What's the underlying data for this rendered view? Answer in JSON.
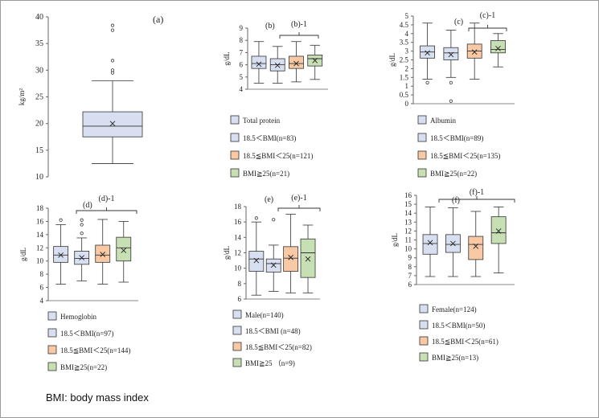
{
  "footnote": "BMI: body mass index",
  "colors": {
    "blue": "#d7dff0",
    "orange": "#f8c9a4",
    "green": "#c6e0b4",
    "edge": "#3a3a3a"
  },
  "chart_data": [
    {
      "type": "box",
      "panel_label": "(a)",
      "ylabel": "kg/m²",
      "ylim": [
        10,
        40
      ],
      "ticks": [
        10,
        15,
        20,
        25,
        30,
        35,
        40
      ],
      "bracket": null,
      "series": [
        {
          "whislo": 12.5,
          "q1": 17.5,
          "median": 19.5,
          "q3": 22.2,
          "whishi": 28.0,
          "mean": 20.0,
          "fliers": [
            29.5,
            30.0,
            31.8,
            37.5,
            38.4
          ],
          "color": "blue"
        }
      ],
      "legend": []
    },
    {
      "type": "box",
      "panel_label": "(b)",
      "bracket_label": "(b)-1",
      "ylabel": "g/dL",
      "ylim": [
        4,
        9
      ],
      "ticks": [
        4,
        5,
        6,
        7,
        8,
        9
      ],
      "bracket": [
        1,
        3
      ],
      "series": [
        {
          "whislo": 4.5,
          "q1": 5.7,
          "median": 6.1,
          "q3": 6.7,
          "whishi": 7.9,
          "mean": 6.05,
          "fliers": [],
          "color": "blue"
        },
        {
          "whislo": 4.5,
          "q1": 5.5,
          "median": 6.0,
          "q3": 6.5,
          "whishi": 7.5,
          "mean": 5.95,
          "fliers": [],
          "color": "blue"
        },
        {
          "whislo": 4.6,
          "q1": 5.7,
          "median": 6.1,
          "q3": 6.7,
          "whishi": 7.9,
          "mean": 6.1,
          "fliers": [],
          "color": "orange"
        },
        {
          "whislo": 4.8,
          "q1": 5.9,
          "median": 6.5,
          "q3": 6.8,
          "whishi": 7.6,
          "mean": 6.35,
          "fliers": [],
          "color": "green"
        }
      ],
      "legend": [
        {
          "label": "Total protein",
          "color": "blue"
        },
        {
          "label": "18.5＜BMI(n=83)",
          "color": "blue"
        },
        {
          "label": "18.5≦BMI＜25(n=121)",
          "color": "orange"
        },
        {
          "label": "BMI≧25(n=21)",
          "color": "green"
        }
      ]
    },
    {
      "type": "box",
      "panel_label": "(c)",
      "bracket_label": "(c)-1",
      "ylabel": "g/dL",
      "ylim": [
        0,
        5
      ],
      "ticks": [
        0,
        0.5,
        1,
        1.5,
        2,
        2.5,
        3,
        3.5,
        4,
        4.5,
        5
      ],
      "tick_labels": [
        "0",
        "0.5",
        "1",
        "1.5",
        "2",
        "2.5",
        "3",
        "3.5",
        "4",
        "4.5",
        "5"
      ],
      "bracket": [
        1,
        3
      ],
      "series": [
        {
          "whislo": 1.4,
          "q1": 2.6,
          "median": 2.95,
          "q3": 3.3,
          "whishi": 4.6,
          "mean": 2.9,
          "fliers": [
            1.2
          ],
          "color": "blue"
        },
        {
          "whislo": 1.5,
          "q1": 2.5,
          "median": 2.9,
          "q3": 3.2,
          "whishi": 4.2,
          "mean": 2.8,
          "fliers": [
            1.2,
            0.15
          ],
          "color": "blue"
        },
        {
          "whislo": 1.4,
          "q1": 2.6,
          "median": 3.0,
          "q3": 3.4,
          "whishi": 4.6,
          "mean": 2.95,
          "fliers": [],
          "color": "orange"
        },
        {
          "whislo": 2.1,
          "q1": 2.9,
          "median": 3.1,
          "q3": 3.6,
          "whishi": 4.0,
          "mean": 3.15,
          "fliers": [],
          "color": "green"
        }
      ],
      "legend": [
        {
          "label": "Albumin",
          "color": "blue"
        },
        {
          "label": "18.5＜BMI(n=89)",
          "color": "blue"
        },
        {
          "label": "18.5≦BMI＜25(n=135)",
          "color": "orange"
        },
        {
          "label": "BMI≧25(n=22)",
          "color": "green"
        }
      ]
    },
    {
      "type": "box",
      "panel_label": "(d)",
      "bracket_label": "(d)-1",
      "ylabel": "g/dL",
      "ylim": [
        4,
        18
      ],
      "ticks": [
        4,
        6,
        8,
        10,
        12,
        14,
        16,
        18
      ],
      "bracket": [
        0,
        3
      ],
      "series": [
        {
          "whislo": 6.5,
          "q1": 9.8,
          "median": 10.9,
          "q3": 12.2,
          "whishi": 15.5,
          "mean": 10.9,
          "fliers": [
            16.2
          ],
          "color": "blue"
        },
        {
          "whislo": 7.0,
          "q1": 9.5,
          "median": 10.4,
          "q3": 11.5,
          "whishi": 13.5,
          "mean": 10.5,
          "fliers": [
            14.2,
            15.5,
            16.2
          ],
          "color": "blue"
        },
        {
          "whislo": 6.5,
          "q1": 9.8,
          "median": 10.9,
          "q3": 12.4,
          "whishi": 16.3,
          "mean": 11.0,
          "fliers": [],
          "color": "orange"
        },
        {
          "whislo": 6.8,
          "q1": 10.0,
          "median": 12.0,
          "q3": 13.6,
          "whishi": 16.0,
          "mean": 11.6,
          "fliers": [],
          "color": "green"
        }
      ],
      "legend": [
        {
          "label": "Hemoglobin",
          "color": "blue"
        },
        {
          "label": "18.5＜BMI(n=97)",
          "color": "blue"
        },
        {
          "label": "18.5≦BMI＜25(n=144)",
          "color": "orange"
        },
        {
          "label": "BMI≧25(n=22)",
          "color": "green"
        }
      ]
    },
    {
      "type": "box",
      "panel_label": "(e)",
      "bracket_label": "(e)-1",
      "ylabel": "g/dL",
      "ylim": [
        6,
        18
      ],
      "ticks": [
        6,
        8,
        10,
        12,
        14,
        16,
        18
      ],
      "bracket": [
        1,
        3
      ],
      "series": [
        {
          "whislo": 6.5,
          "q1": 9.6,
          "median": 11.2,
          "q3": 12.2,
          "whishi": 16.0,
          "mean": 11.0,
          "fliers": [
            16.5
          ],
          "color": "blue"
        },
        {
          "whislo": 7.0,
          "q1": 9.5,
          "median": 10.6,
          "q3": 11.2,
          "whishi": 13.0,
          "mean": 10.4,
          "fliers": [
            16.3
          ],
          "color": "blue"
        },
        {
          "whislo": 6.8,
          "q1": 9.6,
          "median": 11.3,
          "q3": 12.8,
          "whishi": 17.0,
          "mean": 11.4,
          "fliers": [],
          "color": "orange"
        },
        {
          "whislo": 6.8,
          "q1": 8.8,
          "median": 12.0,
          "q3": 13.8,
          "whishi": 15.6,
          "mean": 11.2,
          "fliers": [],
          "color": "green"
        }
      ],
      "legend": [
        {
          "label": "Male(n=140)",
          "color": "blue"
        },
        {
          "label": "18.5＜BMI (n=48)",
          "color": "blue"
        },
        {
          "label": "18.5≦BMI＜25(n=82)",
          "color": "orange"
        },
        {
          "label": "BMI≧25  （n=9)",
          "color": "green"
        }
      ]
    },
    {
      "type": "box",
      "panel_label": "(f)",
      "bracket_label": "(f)-1",
      "ylabel": "g/dL",
      "ylim": [
        6,
        16
      ],
      "ticks": [
        6,
        7,
        8,
        9,
        10,
        11,
        12,
        13,
        14,
        15,
        16
      ],
      "bracket": [
        0,
        3
      ],
      "series": [
        {
          "whislo": 6.9,
          "q1": 9.4,
          "median": 10.6,
          "q3": 11.6,
          "whishi": 14.7,
          "mean": 10.7,
          "fliers": [],
          "color": "blue"
        },
        {
          "whislo": 6.9,
          "q1": 9.6,
          "median": 10.5,
          "q3": 11.6,
          "whishi": 14.6,
          "mean": 10.6,
          "fliers": [],
          "color": "blue"
        },
        {
          "whislo": 6.9,
          "q1": 8.8,
          "median": 10.5,
          "q3": 11.4,
          "whishi": 14.2,
          "mean": 10.3,
          "fliers": [],
          "color": "orange"
        },
        {
          "whislo": 7.3,
          "q1": 10.6,
          "median": 11.8,
          "q3": 13.6,
          "whishi": 14.7,
          "mean": 12.0,
          "fliers": [],
          "color": "green"
        }
      ],
      "legend": [
        {
          "label": "Female(n=124)",
          "color": "blue"
        },
        {
          "label": "18.5＜BMI(n=50)",
          "color": "blue"
        },
        {
          "label": "18.5≦BMI＜25(n=61)",
          "color": "orange"
        },
        {
          "label": "BMI≧25(n=13)",
          "color": "green"
        }
      ]
    }
  ]
}
